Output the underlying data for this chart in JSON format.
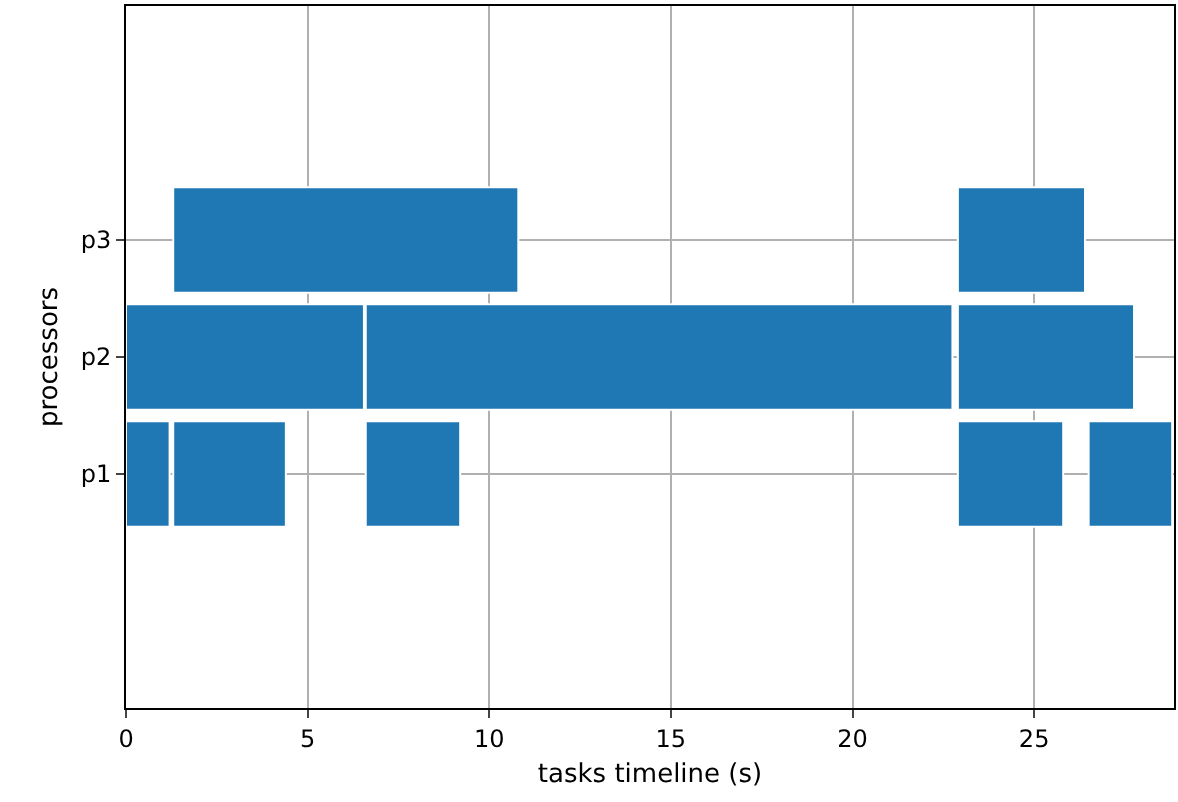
{
  "chart_data": {
    "type": "bar",
    "orientation": "horizontal",
    "xlabel": "tasks timeline (s)",
    "ylabel": "processors",
    "categories": [
      "p3",
      "p2",
      "p1"
    ],
    "series": [
      {
        "color": "#1f77b4",
        "base": [
          1.3,
          0,
          0
        ],
        "values": [
          9.5,
          6.55,
          1.2
        ]
      },
      {
        "color": "#1f77b4",
        "base": [
          22.9,
          6.6,
          1.3
        ],
        "values": [
          3.5,
          16.15,
          3.1
        ]
      },
      {
        "color": "#1f77b4",
        "base": [
          null,
          22.9,
          6.6
        ],
        "values": [
          null,
          4.85,
          2.6
        ]
      },
      {
        "color": "#1f77b4",
        "base": [
          null,
          null,
          22.9
        ],
        "values": [
          null,
          null,
          2.9
        ]
      },
      {
        "color": "#1f77b4",
        "base": [
          null,
          null,
          26.5
        ],
        "values": [
          null,
          null,
          2.3
        ]
      }
    ],
    "xlim": [
      0,
      28.85
    ],
    "xticks": [
      0,
      5,
      10,
      15,
      20,
      25
    ],
    "grid": true
  }
}
